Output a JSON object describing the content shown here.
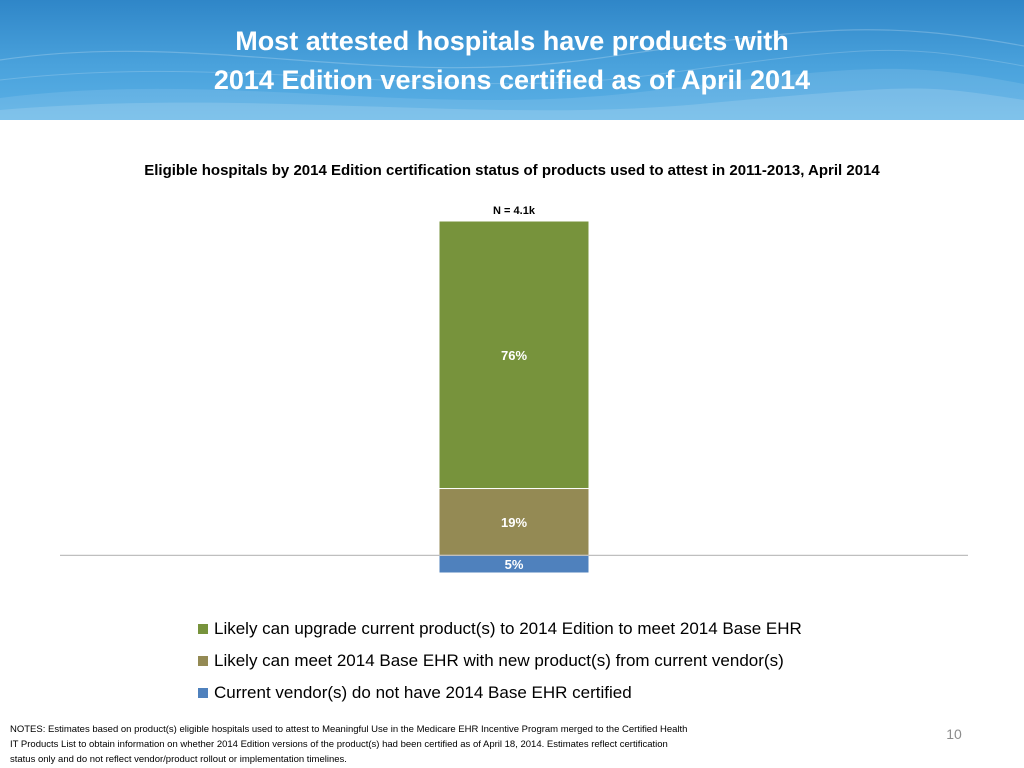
{
  "slide": {
    "title_line1": "Most attested hospitals have products with",
    "title_line2": "2014 Edition versions certified as of April 2014",
    "notes": "NOTES: Estimates based on product(s) eligible hospitals used to attest to Meaningful Use in the Medicare EHR Incentive Program  merged to the Certified Health IT Products List to obtain information on whether 2014 Edition versions of the product(s) had been certified as of April 18, 2014. Estimates reflect certification status only and do not reflect vendor/product rollout or implementation timelines.",
    "page_number": "10"
  },
  "chart_data": {
    "type": "bar",
    "stacked": true,
    "title": "Eligible hospitals by 2014 Edition certification status of products used to attest in 2011-2013, April 2014",
    "total_label": "N = 4.1k",
    "categories": [
      ""
    ],
    "series": [
      {
        "name": "Current vendor(s) do not have 2014 Base EHR certified",
        "values": [
          5
        ],
        "label": "5%",
        "color": "#4f81bd"
      },
      {
        "name": "Likely can meet 2014 Base EHR with new product(s) from current vendor(s)",
        "values": [
          19
        ],
        "label": "19%",
        "color": "#948a54"
      },
      {
        "name": "Likely can upgrade current product(s) to 2014 Edition to meet 2014 Base EHR",
        "values": [
          76
        ],
        "label": "76%",
        "color": "#77933c"
      }
    ],
    "legend": [
      {
        "name": "Likely can upgrade current product(s) to 2014 Edition to meet 2014 Base EHR",
        "color": "#77933c"
      },
      {
        "name": "Likely can meet 2014 Base EHR with new product(s) from current vendor(s)",
        "color": "#948a54"
      },
      {
        "name": "Current vendor(s) do not have 2014 Base EHR certified",
        "color": "#4f81bd"
      }
    ],
    "legend_position": "bottom",
    "grid": false,
    "ylim": [
      0,
      100
    ]
  }
}
